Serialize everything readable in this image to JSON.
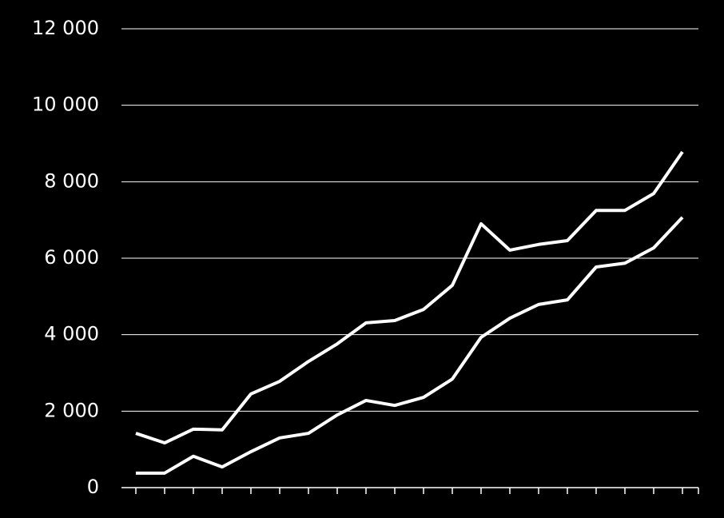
{
  "chart_data": {
    "type": "line",
    "categories": [
      null,
      null,
      null,
      null,
      null,
      null,
      null,
      null,
      null,
      null,
      null,
      null,
      null,
      null,
      null,
      null,
      null,
      null,
      null,
      null
    ],
    "series": [
      {
        "color": "#ffffff",
        "values": [
          1420,
          1170,
          1530,
          1510,
          2450,
          2780,
          3300,
          3760,
          4310,
          4370,
          4660,
          5290,
          6900,
          6210,
          6360,
          6460,
          7250,
          7250,
          7690,
          8780
        ]
      },
      {
        "color": "#ffffff",
        "values": [
          380,
          380,
          820,
          540,
          940,
          1300,
          1420,
          1900,
          2280,
          2150,
          2360,
          2840,
          3930,
          4430,
          4790,
          4910,
          5770,
          5870,
          6270,
          7070
        ]
      }
    ],
    "ylim": [
      0,
      12000
    ],
    "yticks": [
      {
        "value": 0,
        "label": "0"
      },
      {
        "value": 2000,
        "label": "2 000"
      },
      {
        "value": 4000,
        "label": "4 000"
      },
      {
        "value": 6000,
        "label": "6 000"
      },
      {
        "value": 8000,
        "label": "8 000"
      },
      {
        "value": 10000,
        "label": "10 000"
      },
      {
        "value": 12000,
        "label": "12 000"
      }
    ],
    "grid": true
  }
}
